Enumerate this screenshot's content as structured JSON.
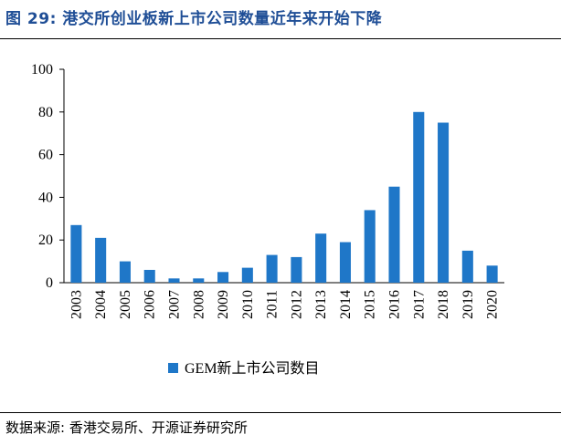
{
  "header": {
    "title": "图 29:  港交所创业板新上市公司数量近年来开始下降"
  },
  "source": {
    "text": "数据来源: 香港交易所、开源证券研究所"
  },
  "chart_data": {
    "type": "bar",
    "categories": [
      "2003",
      "2004",
      "2005",
      "2006",
      "2007",
      "2008",
      "2009",
      "2010",
      "2011",
      "2012",
      "2013",
      "2014",
      "2015",
      "2016",
      "2017",
      "2018",
      "2019",
      "2020"
    ],
    "series": [
      {
        "name": "GEM新上市公司数目",
        "color": "#1f77c8",
        "values": [
          27,
          21,
          10,
          6,
          2,
          2,
          5,
          7,
          13,
          12,
          23,
          19,
          34,
          45,
          80,
          75,
          15,
          8
        ]
      }
    ],
    "ylim": [
      0,
      100
    ],
    "yticks": [
      0,
      20,
      40,
      60,
      80,
      100
    ],
    "grid": false,
    "legend_position": "bottom-center"
  }
}
